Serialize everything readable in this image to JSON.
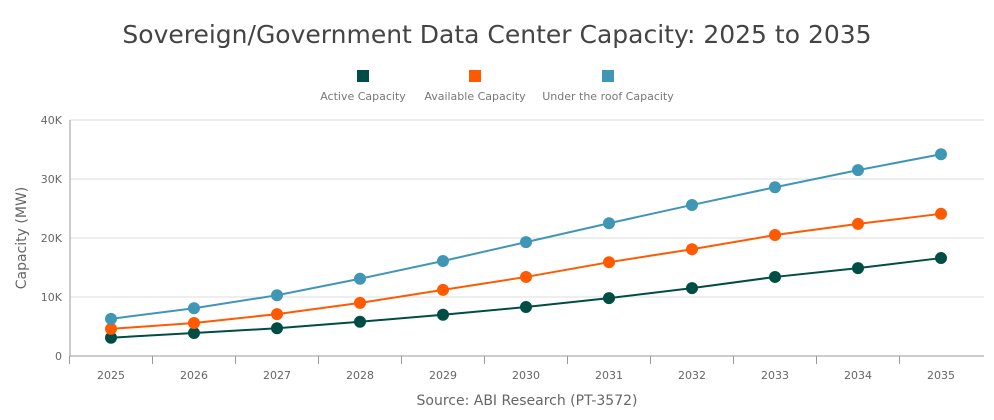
{
  "chart_data": {
    "type": "line",
    "title": "Sovereign/Government Data Center Capacity: 2025 to 2035",
    "ylabel": "Capacity (MW)",
    "xlabel": "",
    "source": "Source: ABI Research (PT-3572)",
    "categories": [
      "2025",
      "2026",
      "2027",
      "2028",
      "2029",
      "2030",
      "2031",
      "2032",
      "2033",
      "2034",
      "2035"
    ],
    "ylim": [
      0,
      40000
    ],
    "yticks": [
      0,
      10000,
      20000,
      30000,
      40000
    ],
    "ytick_labels": [
      "0",
      "10K",
      "20K",
      "30K",
      "40K"
    ],
    "grid": true,
    "legend_position": "top",
    "series": [
      {
        "name": "Active Capacity",
        "color": "#004d45",
        "values": [
          3100,
          3900,
          4700,
          5800,
          7000,
          8300,
          9800,
          11500,
          13400,
          14900,
          16600
        ]
      },
      {
        "name": "Available Capacity",
        "color": "#ff5a00",
        "values": [
          4600,
          5600,
          7100,
          9000,
          11200,
          13400,
          15900,
          18100,
          20500,
          22400,
          24100
        ]
      },
      {
        "name": "Under the roof Capacity",
        "color": "#3f97b5",
        "values": [
          6300,
          8100,
          10300,
          13100,
          16100,
          19300,
          22500,
          25600,
          28600,
          31500,
          34200
        ]
      }
    ]
  }
}
